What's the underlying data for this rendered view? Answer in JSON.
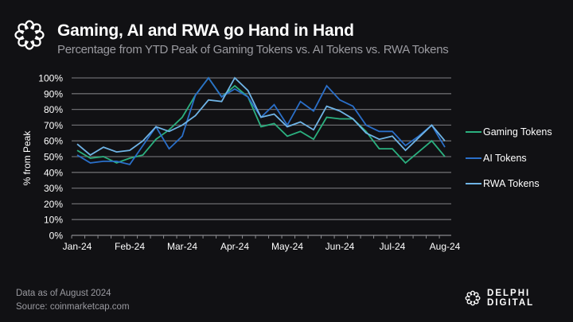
{
  "header": {
    "title": "Gaming, AI and RWA go Hand in Hand",
    "subtitle": "Percentage from YTD Peak of Gaming Tokens vs. AI Tokens vs. RWA Tokens",
    "logo_icon": "delphi-knot-icon"
  },
  "footer": {
    "data_note": "Data as of August 2024",
    "source": "Source: coinmarketcap.com",
    "brand": "DELPHI DIGITAL"
  },
  "colors": {
    "background": "#111114",
    "gaming": "#2bb07f",
    "ai": "#2a6fc9",
    "rwa": "#6fb4e6",
    "grid": "#6a6a6e"
  },
  "chart_data": {
    "type": "line",
    "title": "Gaming, AI and RWA go Hand in Hand",
    "subtitle": "Percentage from YTD Peak of Gaming Tokens vs. AI Tokens vs. RWA Tokens",
    "xlabel": "",
    "ylabel": "% from Peak",
    "ylim": [
      0,
      100
    ],
    "yticks": [
      "0%",
      "10%",
      "20%",
      "30%",
      "40%",
      "50%",
      "60%",
      "70%",
      "80%",
      "90%",
      "100%"
    ],
    "xtick_labels": [
      "Jan-24",
      "Feb-24",
      "Mar-24",
      "Apr-24",
      "May-24",
      "Jun-24",
      "Jul-24",
      "Aug-24"
    ],
    "xtick_every": 4,
    "x_frequency": "weekly",
    "grid": true,
    "legend_position": "right",
    "series": [
      {
        "name": "Gaming Tokens",
        "color_key": "gaming",
        "values": [
          54,
          49,
          50,
          46,
          49,
          51,
          61,
          67,
          75,
          89,
          100,
          88,
          95,
          88,
          69,
          71,
          63,
          66,
          61,
          75,
          74,
          74,
          66,
          55,
          55,
          46,
          53,
          60,
          50
        ]
      },
      {
        "name": "AI Tokens",
        "color_key": "ai",
        "values": [
          51,
          46,
          47,
          47,
          45,
          57,
          69,
          55,
          63,
          89,
          100,
          88,
          93,
          88,
          75,
          83,
          70,
          85,
          79,
          95,
          86,
          82,
          70,
          66,
          66,
          57,
          63,
          70,
          56
        ]
      },
      {
        "name": "RWA Tokens",
        "color_key": "rwa",
        "values": [
          58,
          51,
          56,
          53,
          54,
          60,
          69,
          66,
          70,
          76,
          86,
          85,
          100,
          92,
          75,
          77,
          69,
          72,
          67,
          82,
          79,
          74,
          65,
          61,
          63,
          54,
          62,
          70,
          60
        ]
      }
    ]
  }
}
